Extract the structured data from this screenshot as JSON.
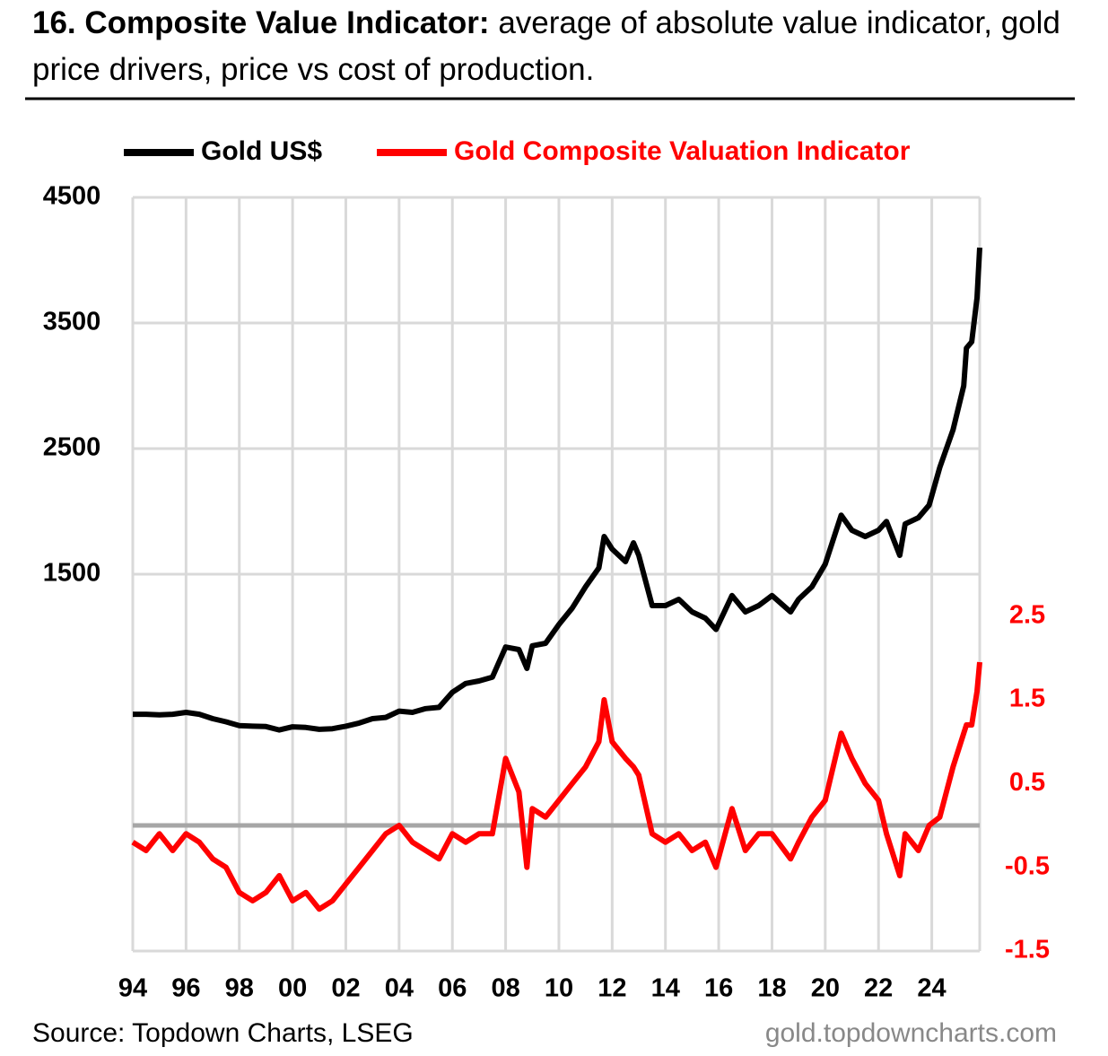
{
  "chart_data": {
    "type": "line",
    "title": "16. Composite Value Indicator:",
    "subtitle": "average of absolute value indicator, gold price drivers, price vs cost of production.",
    "source": "Source: Topdown Charts, LSEG",
    "website": "gold.topdowncharts.com",
    "x": [
      1994,
      1994.5,
      1995,
      1995.5,
      1996,
      1996.5,
      1997,
      1997.5,
      1998,
      1998.5,
      1999,
      1999.5,
      2000,
      2000.5,
      2001,
      2001.5,
      2002,
      2002.5,
      2003,
      2003.5,
      2004,
      2004.5,
      2005,
      2005.5,
      2006,
      2006.5,
      2007,
      2007.5,
      2008,
      2008.5,
      2008.8,
      2009,
      2009.5,
      2010,
      2010.5,
      2011,
      2011.5,
      2011.7,
      2012,
      2012.5,
      2012.8,
      2013,
      2013.5,
      2014,
      2014.5,
      2015,
      2015.5,
      2015.9,
      2016.5,
      2017,
      2017.5,
      2018,
      2018.7,
      2019,
      2019.5,
      2020,
      2020.6,
      2021,
      2021.5,
      2022,
      2022.3,
      2022.8,
      2023,
      2023.5,
      2023.9,
      2024.3,
      2024.8,
      2025.2,
      2025.3,
      2025.5,
      2025.7,
      2025.8
    ],
    "series": [
      {
        "name": "Gold US$",
        "color": "#000000",
        "axis": "y",
        "values": [
          385,
          385,
          380,
          385,
          400,
          385,
          350,
          325,
          295,
          290,
          287,
          260,
          285,
          280,
          265,
          270,
          290,
          315,
          350,
          360,
          410,
          400,
          430,
          440,
          560,
          630,
          650,
          680,
          920,
          900,
          750,
          930,
          950,
          1100,
          1230,
          1400,
          1550,
          1800,
          1700,
          1600,
          1750,
          1650,
          1250,
          1250,
          1300,
          1200,
          1150,
          1060,
          1330,
          1200,
          1250,
          1330,
          1200,
          1300,
          1400,
          1580,
          1970,
          1850,
          1800,
          1850,
          1920,
          1650,
          1900,
          1950,
          2050,
          2350,
          2650,
          3000,
          3300,
          3350,
          3700,
          4100
        ]
      },
      {
        "name": "Gold Composite Valuation Indicator",
        "color": "#ff0000",
        "axis": "y2",
        "values": [
          -0.2,
          -0.3,
          -0.1,
          -0.3,
          -0.1,
          -0.2,
          -0.4,
          -0.5,
          -0.8,
          -0.9,
          -0.8,
          -0.6,
          -0.9,
          -0.8,
          -1.0,
          -0.9,
          -0.7,
          -0.5,
          -0.3,
          -0.1,
          0.0,
          -0.2,
          -0.3,
          -0.4,
          -0.1,
          -0.2,
          -0.1,
          -0.1,
          0.8,
          0.4,
          -0.5,
          0.2,
          0.1,
          0.3,
          0.5,
          0.7,
          1.0,
          1.5,
          1.0,
          0.8,
          0.7,
          0.6,
          -0.1,
          -0.2,
          -0.1,
          -0.3,
          -0.2,
          -0.5,
          0.2,
          -0.3,
          -0.1,
          -0.1,
          -0.4,
          -0.2,
          0.1,
          0.3,
          1.1,
          0.8,
          0.5,
          0.3,
          -0.1,
          -0.6,
          -0.1,
          -0.3,
          0.0,
          0.1,
          0.7,
          1.1,
          1.2,
          1.2,
          1.6,
          1.95
        ]
      }
    ],
    "xlim": [
      1994,
      2025.8
    ],
    "xticks": [
      {
        "value": 1994,
        "label": "94"
      },
      {
        "value": 1996,
        "label": "96"
      },
      {
        "value": 1998,
        "label": "98"
      },
      {
        "value": 2000,
        "label": "00"
      },
      {
        "value": 2002,
        "label": "02"
      },
      {
        "value": 2004,
        "label": "04"
      },
      {
        "value": 2006,
        "label": "06"
      },
      {
        "value": 2008,
        "label": "08"
      },
      {
        "value": 2010,
        "label": "10"
      },
      {
        "value": 2012,
        "label": "12"
      },
      {
        "value": 2014,
        "label": "14"
      },
      {
        "value": 2016,
        "label": "16"
      },
      {
        "value": 2018,
        "label": "18"
      },
      {
        "value": 2020,
        "label": "20"
      },
      {
        "value": 2022,
        "label": "22"
      },
      {
        "value": 2024,
        "label": "24"
      }
    ],
    "ylim": [
      -1500,
      4500
    ],
    "yticks": [
      1500,
      2500,
      3500,
      4500
    ],
    "y2lim": [
      -1.5,
      7.5
    ],
    "y2ticks": [
      -1.5,
      -0.5,
      0.5,
      1.5,
      2.5
    ],
    "y2_reference_line": 0,
    "grid": true
  }
}
